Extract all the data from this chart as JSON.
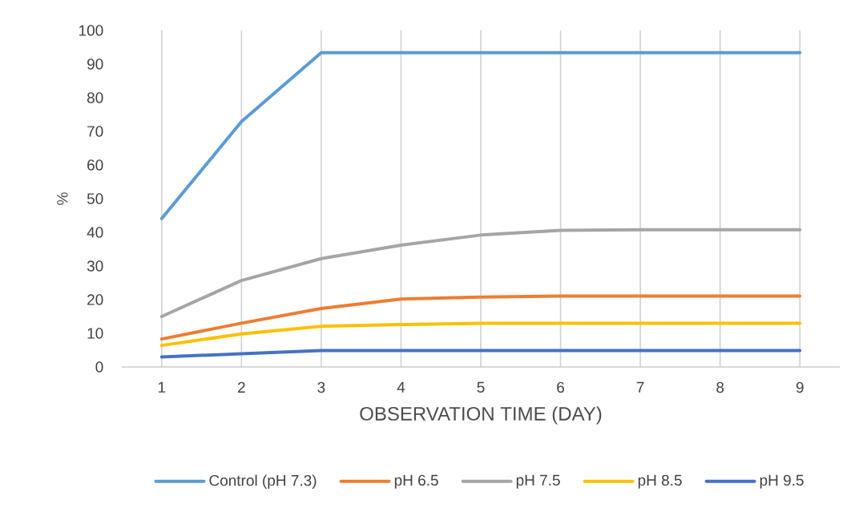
{
  "chart_data": {
    "type": "line",
    "xlabel": "OBSERVATION TIME (DAY)",
    "ylabel": "%",
    "categories": [
      "1",
      "2",
      "3",
      "4",
      "5",
      "6",
      "7",
      "8",
      "9"
    ],
    "ylim": [
      0,
      100
    ],
    "yticks": [
      0,
      10,
      20,
      30,
      40,
      50,
      60,
      70,
      80,
      90,
      100
    ],
    "grid": "x",
    "legend": "bottom",
    "marker": "none",
    "line_style": "solid",
    "series": [
      {
        "name": "Control (pH 7.3)",
        "color": "#5b9bd5",
        "values": [
          44.1,
          72.9,
          93.4,
          93.4,
          93.4,
          93.4,
          93.4,
          93.4,
          93.4
        ]
      },
      {
        "name": "pH 6.5",
        "color": "#ed7d31",
        "values": [
          8.3,
          13.0,
          17.4,
          20.2,
          20.8,
          21.1,
          21.1,
          21.1,
          21.1
        ]
      },
      {
        "name": "pH 7.5",
        "color": "#a5a5a5",
        "values": [
          15.0,
          25.7,
          32.2,
          36.2,
          39.2,
          40.6,
          40.8,
          40.8,
          40.8
        ]
      },
      {
        "name": "pH 8.5",
        "color": "#ffc000",
        "values": [
          6.4,
          9.8,
          12.1,
          12.6,
          13.0,
          13.0,
          13.0,
          13.0,
          13.0
        ]
      },
      {
        "name": "pH 9.5",
        "color": "#4472c4",
        "values": [
          3.0,
          3.9,
          4.9,
          4.9,
          4.9,
          4.9,
          4.9,
          4.9,
          4.9
        ]
      }
    ]
  }
}
